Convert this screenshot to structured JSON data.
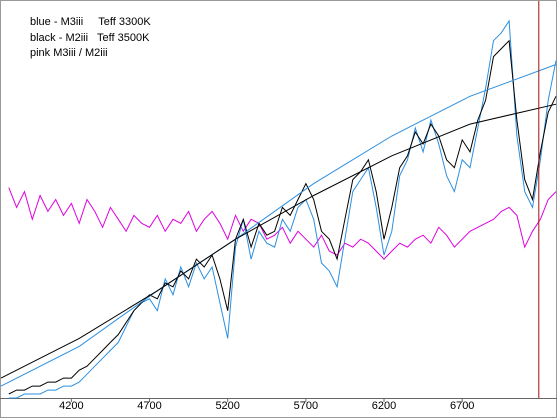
{
  "chart_data": {
    "type": "line",
    "annotations": [
      "blue - M3iii     Teff 3300K",
      "black - M2iii   Teff 3500K",
      "pink M3iii / M2iii"
    ],
    "x": [
      3800,
      3850,
      3900,
      3950,
      4000,
      4050,
      4100,
      4150,
      4200,
      4250,
      4300,
      4350,
      4400,
      4450,
      4500,
      4550,
      4600,
      4650,
      4700,
      4750,
      4800,
      4850,
      4900,
      4950,
      5000,
      5050,
      5100,
      5150,
      5200,
      5250,
      5300,
      5350,
      5400,
      5450,
      5500,
      5550,
      5600,
      5650,
      5700,
      5750,
      5800,
      5850,
      5900,
      5950,
      6000,
      6050,
      6100,
      6150,
      6200,
      6250,
      6300,
      6350,
      6400,
      6450,
      6500,
      6550,
      6600,
      6650,
      6700,
      6750,
      6800,
      6850,
      6900,
      6950,
      7000,
      7050,
      7100,
      7150,
      7200,
      7250,
      7300
    ],
    "series": [
      {
        "name": "black",
        "color": "#000000",
        "values": [
          1,
          2,
          2,
          3,
          3,
          4,
          4,
          5,
          5,
          7,
          8,
          10,
          12,
          14,
          16,
          19,
          22,
          24,
          26,
          25,
          29,
          28,
          32,
          30,
          35,
          33,
          36,
          30,
          22,
          40,
          45,
          38,
          44,
          41,
          42,
          48,
          46,
          50,
          54,
          50,
          42,
          40,
          35,
          45,
          55,
          57,
          60,
          52,
          40,
          48,
          58,
          61,
          67,
          64,
          69,
          66,
          60,
          58,
          65,
          62,
          70,
          75,
          86,
          88,
          90,
          70,
          55,
          50,
          62,
          72,
          76
        ]
      },
      {
        "name": "blue",
        "color": "#2b8fe0",
        "values": [
          0,
          0,
          1,
          1,
          1,
          2,
          2,
          3,
          3,
          4,
          6,
          8,
          10,
          12,
          14,
          18,
          22,
          24,
          25,
          22,
          30,
          26,
          33,
          28,
          34,
          30,
          33,
          24,
          15,
          38,
          45,
          35,
          42,
          39,
          38,
          45,
          42,
          48,
          50,
          45,
          34,
          32,
          28,
          40,
          52,
          55,
          58,
          48,
          36,
          42,
          56,
          60,
          68,
          62,
          70,
          64,
          56,
          52,
          60,
          58,
          68,
          78,
          90,
          92,
          95,
          66,
          52,
          48,
          60,
          75,
          85
        ]
      },
      {
        "name": "pink",
        "color": "#e000e0",
        "values": [
          53,
          48,
          52,
          45,
          51,
          47,
          50,
          46,
          49,
          44,
          50,
          47,
          43,
          48,
          45,
          42,
          46,
          44,
          43,
          46,
          42,
          45,
          44,
          47,
          42,
          45,
          47,
          44,
          40,
          46,
          42,
          45,
          44,
          40,
          41,
          43,
          39,
          42,
          40,
          38,
          41,
          37,
          36,
          39,
          38,
          40,
          39,
          37,
          35,
          37,
          39,
          38,
          40,
          41,
          39,
          43,
          41,
          38,
          40,
          42,
          43,
          44,
          45,
          47,
          48,
          46,
          38,
          42,
          45,
          50,
          52
        ]
      },
      {
        "name": "black-fit",
        "color": "#000000",
        "x": [
          3750,
          4250,
          4750,
          5250,
          5750,
          6250,
          6750,
          7300
        ],
        "values": [
          5,
          15,
          27,
          40,
          51,
          61,
          69,
          74
        ]
      },
      {
        "name": "blue-fit",
        "color": "#2b8fe0",
        "x": [
          3750,
          4250,
          4750,
          5250,
          5750,
          6250,
          6750,
          7300
        ],
        "values": [
          3,
          13,
          27,
          40,
          54,
          66,
          76,
          84
        ]
      }
    ],
    "vline": {
      "x": 7190,
      "color": "#a01010"
    },
    "xlim": [
      3750,
      7300
    ],
    "xticks": [
      4200,
      4700,
      5200,
      5700,
      6200,
      6700
    ],
    "ylim": [
      0,
      100
    ]
  }
}
